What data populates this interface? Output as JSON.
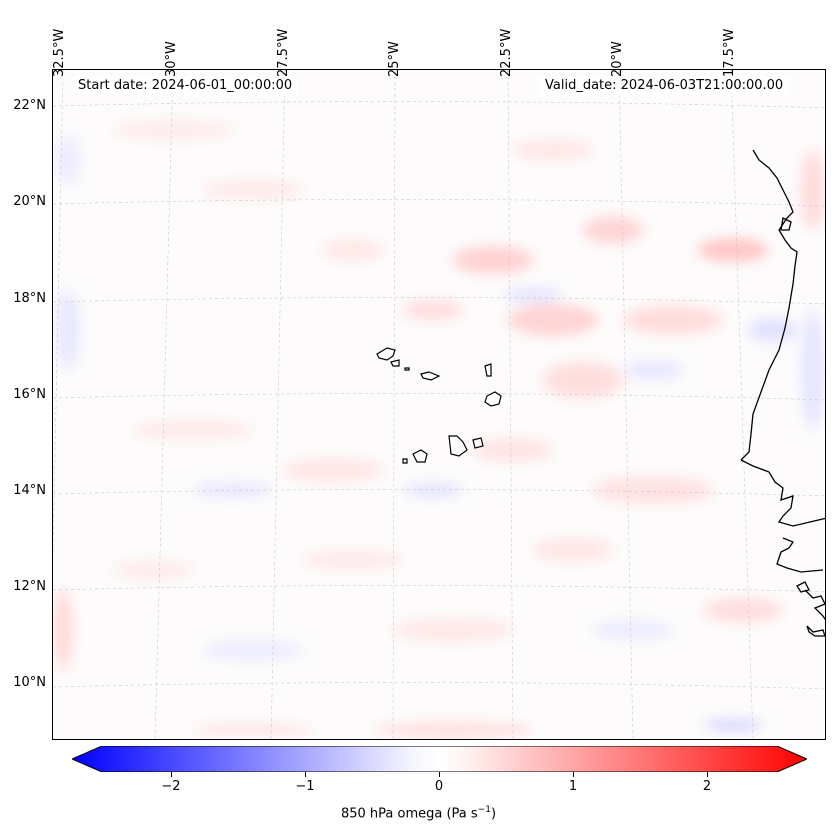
{
  "map": {
    "variable_label": "850 hPa omega (Pa s",
    "variable_unit_exp": "−1",
    "variable_label_close": ")",
    "start_date": "Start date: 2024-06-01_00:00:00",
    "valid_date": "Valid_date: 2024-06-03T21:00:00.00",
    "longitude_labels": [
      "32.5°W",
      "30°W",
      "27.5°W",
      "25°W",
      "22.5°W",
      "20°W",
      "17.5°W"
    ],
    "latitude_labels": [
      "22°N",
      "20°N",
      "18°N",
      "16°N",
      "14°N",
      "12°N",
      "10°N"
    ],
    "colors": {
      "negative": "#0000ff",
      "neutral": "#ffffff",
      "positive": "#ff0000",
      "coast": "#000000"
    }
  },
  "colorbar": {
    "range": [
      -2.6,
      2.6
    ],
    "ticks": [
      "−2",
      "−1",
      "0",
      "1",
      "2"
    ],
    "tick_values": [
      -2,
      -1,
      0,
      1,
      2
    ]
  }
}
